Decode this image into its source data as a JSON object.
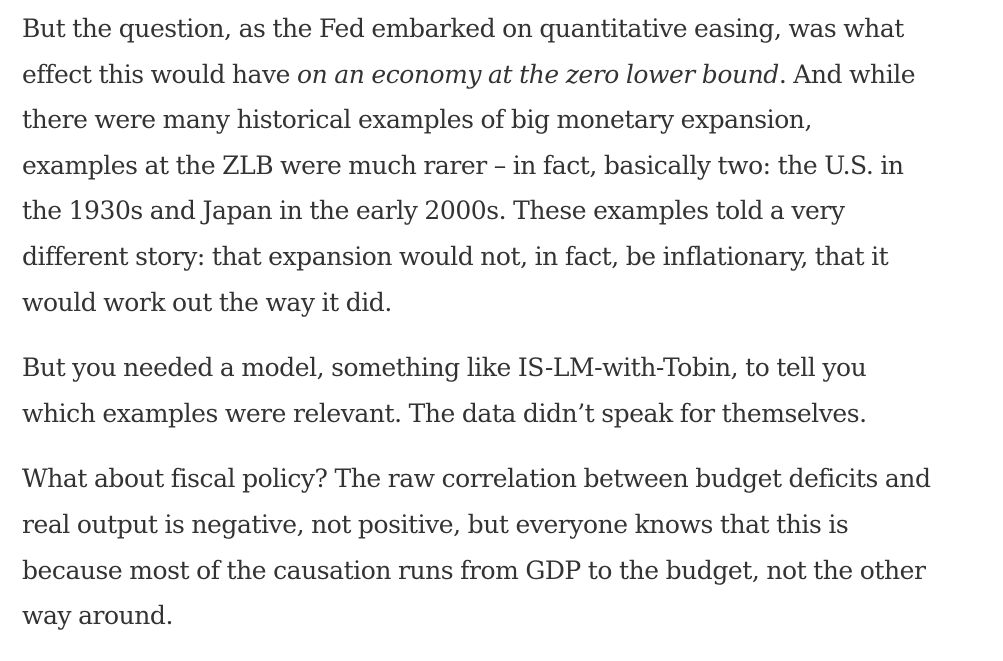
{
  "article": {
    "paragraph_1": {
      "line_1": "But the question, as the Fed embarked on quantitative easing, was what",
      "line_2_start": "effect this would have ",
      "line_2_italic": "on an economy at the zero lower bound",
      "line_2_end": ". And while",
      "line_3": "there were many historical examples of big monetary expansion,",
      "line_4": "examples at the ZLB were much rarer – in fact, basically two: the U.S. in",
      "line_5": "the 1930s and Japan in the early 2000s. These examples told a very",
      "line_6": "different story: that expansion would not, in fact, be inflationary, that it",
      "line_7": "would work out the way it did."
    },
    "paragraph_2": {
      "line_1": "But you needed a model, something like IS-LM-with-Tobin, to tell you",
      "line_2": "which examples were relevant. The data didn’t speak for themselves."
    },
    "paragraph_3": {
      "line_1": "What about fiscal policy? The raw correlation between budget deficits and",
      "line_2": "real output is negative, not positive, but everyone knows that this is",
      "line_3": "because most of the causation runs from GDP to the budget, not the other",
      "line_4": "way around."
    }
  }
}
